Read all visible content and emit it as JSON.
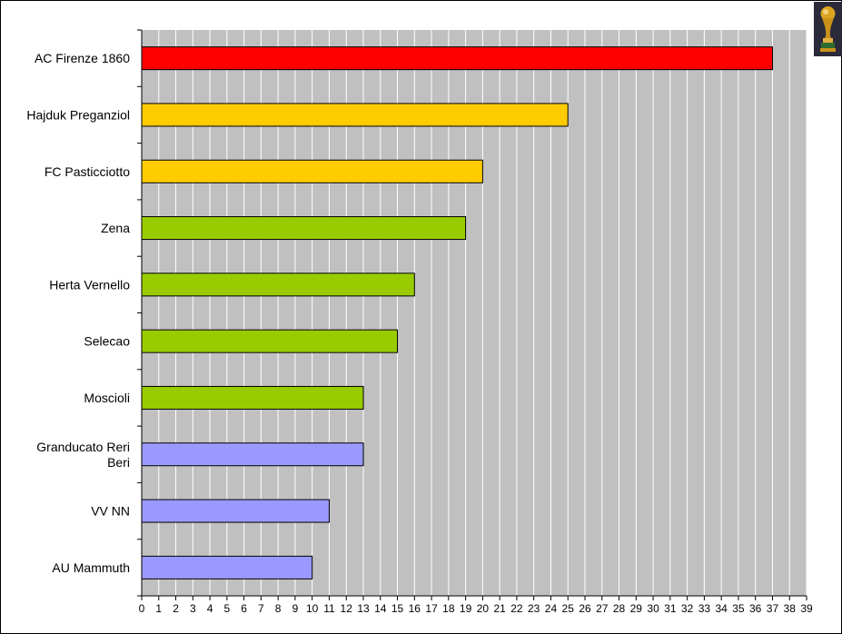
{
  "chart_data": {
    "type": "bar",
    "orientation": "horizontal",
    "categories": [
      "AC Firenze 1860",
      "Hajduk Preganziol",
      "FC Pasticciotto",
      "Zena",
      "Herta Vernello",
      "Selecao",
      "Moscioli",
      "Granducato Reri Beri",
      "VV NN",
      "AU Mammuth"
    ],
    "values": [
      37,
      25,
      20,
      19,
      16,
      15,
      13,
      13,
      11,
      10
    ],
    "colors": [
      "#ff0000",
      "#ffcc00",
      "#ffcc00",
      "#99cc00",
      "#99cc00",
      "#99cc00",
      "#99cc00",
      "#9999ff",
      "#9999ff",
      "#9999ff"
    ],
    "xlim": [
      0,
      39
    ],
    "xticks": [
      0,
      1,
      2,
      3,
      4,
      5,
      6,
      7,
      8,
      9,
      10,
      11,
      12,
      13,
      14,
      15,
      16,
      17,
      18,
      19,
      20,
      21,
      22,
      23,
      24,
      25,
      26,
      27,
      28,
      29,
      30,
      31,
      32,
      33,
      34,
      35,
      36,
      37,
      38,
      39
    ],
    "grid": true,
    "plot_background": "#c0c0c0",
    "grid_color": "#ffffff",
    "title": "",
    "xlabel": "",
    "ylabel": ""
  },
  "decor": {
    "trophy_icon": "trophy-icon"
  }
}
